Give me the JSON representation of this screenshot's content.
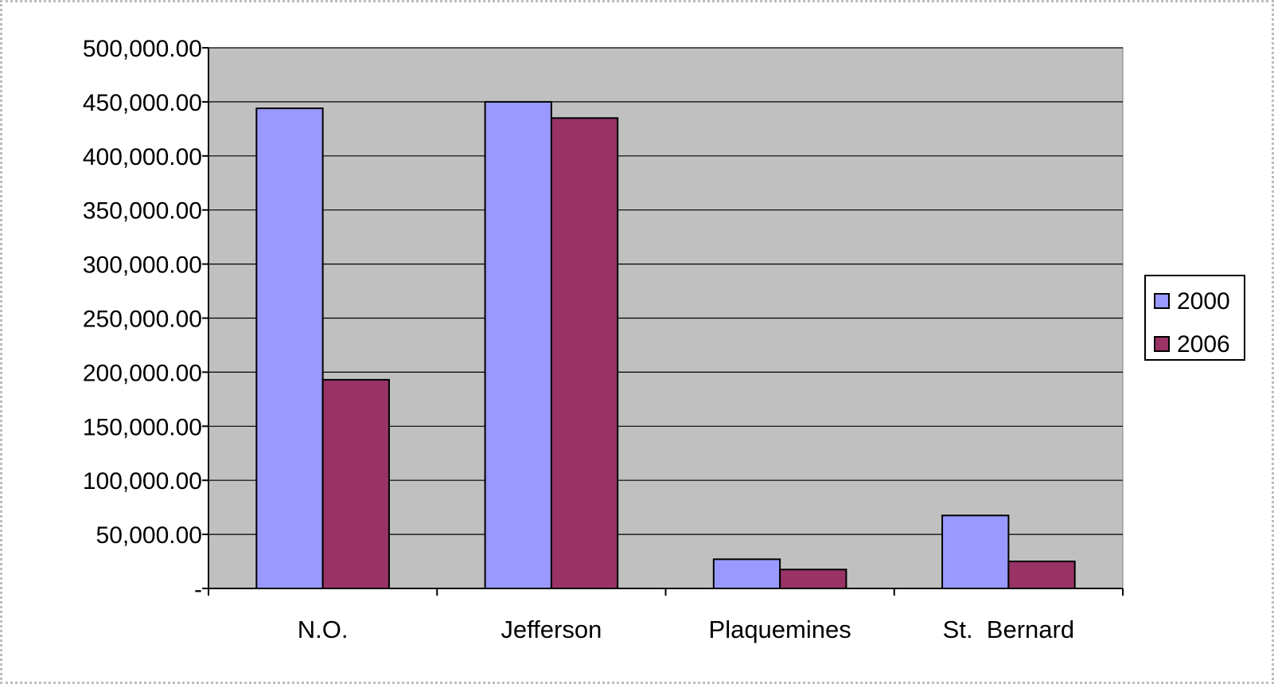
{
  "chart_data": {
    "type": "bar",
    "categories": [
      "N.O.",
      "Jefferson",
      "Plaquemines",
      "St.  Bernard"
    ],
    "series": [
      {
        "name": "2000",
        "values": [
          444000,
          450000,
          27000,
          67500
        ],
        "color": "#9999FF"
      },
      {
        "name": "2006",
        "values": [
          193000,
          435000,
          17500,
          25000
        ],
        "color": "#993366"
      }
    ],
    "y_tick_labels": [
      "-",
      "50,000.00",
      "100,000.00",
      "150,000.00",
      "200,000.00",
      "250,000.00",
      "300,000.00",
      "350,000.00",
      "400,000.00",
      "450,000.00",
      "500,000.00"
    ],
    "ylim": [
      0,
      500000
    ],
    "y_step": 50000,
    "grid": true,
    "legend_position": "right",
    "plot_background": "#C0C0C0",
    "title": "",
    "xlabel": "",
    "ylabel": ""
  }
}
